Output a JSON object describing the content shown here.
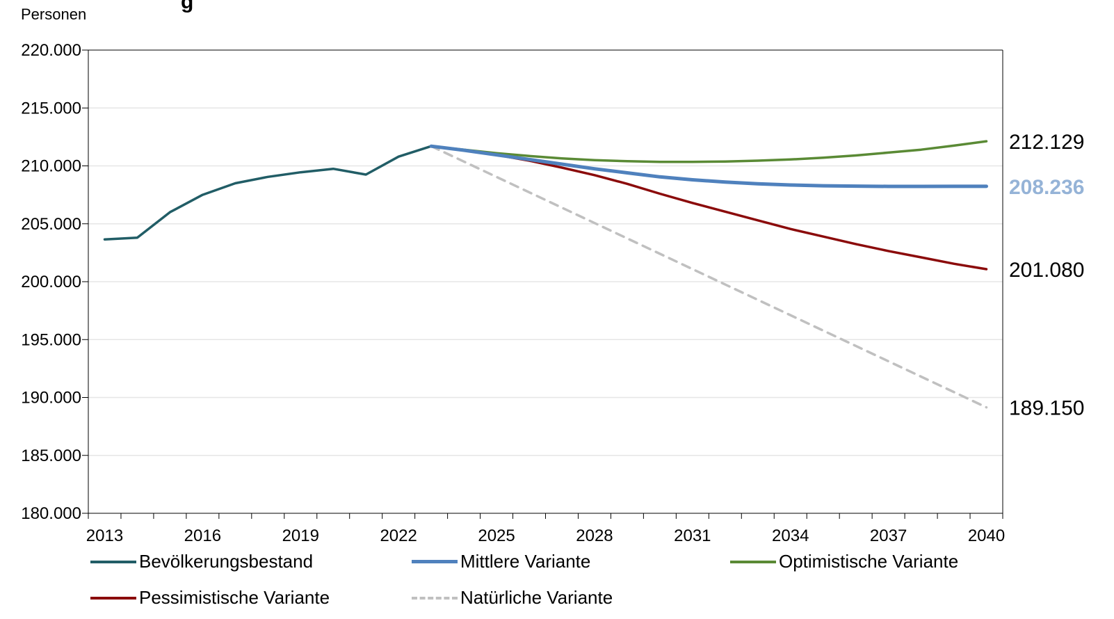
{
  "chart_data": {
    "type": "line",
    "title": "g",
    "ylabel": "Personen",
    "ylim": [
      180000,
      220000
    ],
    "yticks": [
      180000,
      185000,
      190000,
      195000,
      200000,
      205000,
      210000,
      215000,
      220000
    ],
    "ytick_labels": [
      "180.000",
      "185.000",
      "190.000",
      "195.000",
      "200.000",
      "205.000",
      "210.000",
      "215.000",
      "220.000"
    ],
    "xlim": [
      2012.5,
      2040.5
    ],
    "xticks": [
      2013,
      2016,
      2019,
      2022,
      2025,
      2028,
      2031,
      2034,
      2037,
      2040
    ],
    "xtick_labels": [
      "2013",
      "2016",
      "2019",
      "2022",
      "2025",
      "2028",
      "2031",
      "2034",
      "2037",
      "2040"
    ],
    "grid": true,
    "legend_position": "bottom",
    "series": [
      {
        "name": "Bevölkerungsbestand",
        "color": "#215d66",
        "dash": "solid",
        "x": [
          2013,
          2014,
          2015,
          2016,
          2017,
          2018,
          2019,
          2020,
          2021,
          2022,
          2023
        ],
        "y": [
          203650,
          203800,
          206000,
          207500,
          208500,
          209050,
          209450,
          209750,
          209250,
          210800,
          211700
        ]
      },
      {
        "name": "Mittlere Variante",
        "color": "#4f81bd",
        "dash": "solid",
        "x": [
          2023,
          2024,
          2025,
          2026,
          2027,
          2028,
          2029,
          2030,
          2031,
          2032,
          2033,
          2034,
          2035,
          2036,
          2037,
          2038,
          2039,
          2040
        ],
        "y": [
          211700,
          211350,
          210950,
          210550,
          210150,
          209750,
          209400,
          209050,
          208800,
          208600,
          208450,
          208350,
          208280,
          208250,
          208230,
          208230,
          208235,
          208236
        ]
      },
      {
        "name": "Optimistische Variante",
        "color": "#5a8a35",
        "dash": "solid",
        "x": [
          2023,
          2024,
          2025,
          2026,
          2027,
          2028,
          2029,
          2030,
          2031,
          2032,
          2033,
          2034,
          2035,
          2036,
          2037,
          2038,
          2039,
          2040
        ],
        "y": [
          211700,
          211400,
          211100,
          210850,
          210650,
          210500,
          210400,
          210350,
          210350,
          210380,
          210450,
          210550,
          210700,
          210900,
          211150,
          211400,
          211750,
          212129
        ]
      },
      {
        "name": "Pessimistische Variante",
        "color": "#8b0b0b",
        "dash": "solid",
        "x": [
          2023,
          2024,
          2025,
          2026,
          2027,
          2028,
          2029,
          2030,
          2031,
          2032,
          2033,
          2034,
          2035,
          2036,
          2037,
          2038,
          2039,
          2040
        ],
        "y": [
          211700,
          211350,
          210950,
          210450,
          209850,
          209200,
          208450,
          207600,
          206800,
          206050,
          205300,
          204550,
          203900,
          203250,
          202650,
          202100,
          201550,
          201080
        ]
      },
      {
        "name": "Natürliche Variante",
        "color": "#c0c0c0",
        "dash": "dashed",
        "x": [
          2023,
          2040
        ],
        "y": [
          211700,
          189150
        ]
      }
    ],
    "end_labels": [
      {
        "text": "212.129",
        "value": 212129,
        "color": "#000000",
        "bold": false
      },
      {
        "text": "208.236",
        "value": 208236,
        "color": "#95b3d7",
        "bold": true
      },
      {
        "text": "201.080",
        "value": 201080,
        "color": "#000000",
        "bold": false
      },
      {
        "text": "189.150",
        "value": 189150,
        "color": "#000000",
        "bold": false
      }
    ]
  }
}
